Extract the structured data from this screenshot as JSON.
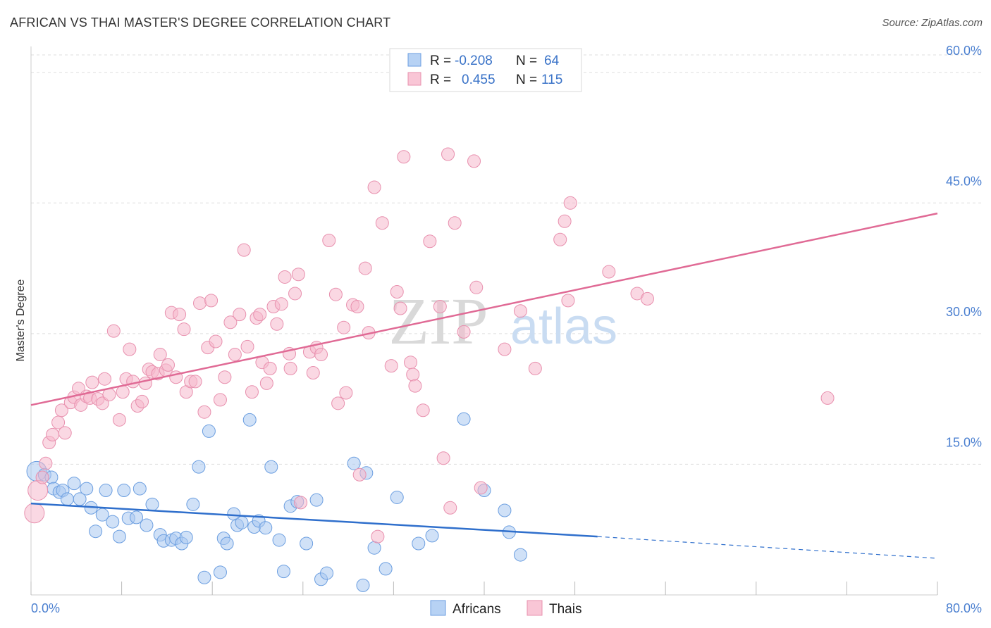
{
  "title": "AFRICAN VS THAI MASTER'S DEGREE CORRELATION CHART",
  "source": "Source: ZipAtlas.com",
  "watermark": {
    "zip": "ZIP",
    "atlas": "atlas"
  },
  "colors": {
    "africans_fill": "#a9c8f0",
    "africans_stroke": "#6b9ee0",
    "africans_line": "#2f6fcc",
    "thais_fill": "#f6b8cc",
    "thais_stroke": "#e890ae",
    "thais_line": "#e06a95",
    "axis_text": "#4a7fd0",
    "grid": "#dddddd"
  },
  "legend": {
    "row1": {
      "r_label": "R =",
      "r_value": "-0.208",
      "n_label": "N =",
      "n_value": "64"
    },
    "row2": {
      "r_label": "R =",
      "r_value": "0.455",
      "n_label": "N =",
      "n_value": "115"
    }
  },
  "chart_data": {
    "type": "scatter",
    "title": "AFRICAN VS THAI MASTER'S DEGREE CORRELATION CHART",
    "ylabel": "Master's Degree",
    "xlabel": "",
    "xlim": [
      0,
      80
    ],
    "ylim": [
      0,
      62
    ],
    "x_tick_labels": {
      "min": "0.0%",
      "max": "80.0%"
    },
    "y_ticks": [
      {
        "value": 15,
        "label": "15.0%"
      },
      {
        "value": 30,
        "label": "30.0%"
      },
      {
        "value": 45,
        "label": "45.0%"
      },
      {
        "value": 60,
        "label": "60.0%"
      }
    ],
    "series": [
      {
        "name": "Africans",
        "r": -0.208,
        "n": 64,
        "trend": {
          "x0": 0,
          "y0": 10.5,
          "x1": 50,
          "y1": 6.7,
          "dash_x1": 80,
          "dash_y1": 4.2
        },
        "points": [
          [
            0.5,
            14.2
          ],
          [
            1.2,
            13.8
          ],
          [
            1.8,
            13.5
          ],
          [
            2.0,
            12.2
          ],
          [
            2.5,
            11.8
          ],
          [
            2.8,
            12.0
          ],
          [
            3.2,
            11.0
          ],
          [
            3.8,
            12.8
          ],
          [
            4.3,
            11.0
          ],
          [
            4.9,
            12.2
          ],
          [
            5.3,
            10.0
          ],
          [
            5.7,
            7.3
          ],
          [
            6.3,
            9.2
          ],
          [
            6.6,
            12.0
          ],
          [
            7.2,
            8.4
          ],
          [
            7.8,
            6.7
          ],
          [
            8.2,
            12.0
          ],
          [
            8.6,
            8.8
          ],
          [
            9.3,
            8.9
          ],
          [
            9.6,
            12.2
          ],
          [
            10.2,
            8.0
          ],
          [
            10.7,
            10.4
          ],
          [
            11.4,
            6.9
          ],
          [
            11.7,
            6.2
          ],
          [
            12.4,
            6.3
          ],
          [
            12.8,
            6.5
          ],
          [
            13.3,
            5.9
          ],
          [
            13.7,
            6.6
          ],
          [
            14.3,
            10.4
          ],
          [
            14.8,
            14.7
          ],
          [
            15.3,
            2.0
          ],
          [
            15.7,
            18.8
          ],
          [
            16.7,
            2.6
          ],
          [
            17.0,
            6.5
          ],
          [
            17.3,
            5.9
          ],
          [
            17.9,
            9.3
          ],
          [
            18.2,
            8.0
          ],
          [
            18.6,
            8.3
          ],
          [
            19.3,
            20.1
          ],
          [
            19.7,
            7.8
          ],
          [
            20.1,
            8.5
          ],
          [
            20.7,
            7.7
          ],
          [
            21.2,
            14.7
          ],
          [
            21.9,
            6.3
          ],
          [
            22.3,
            2.7
          ],
          [
            22.9,
            10.2
          ],
          [
            23.5,
            10.7
          ],
          [
            24.3,
            5.9
          ],
          [
            25.2,
            10.9
          ],
          [
            25.6,
            1.8
          ],
          [
            26.1,
            2.5
          ],
          [
            28.5,
            15.1
          ],
          [
            29.3,
            1.1
          ],
          [
            29.6,
            14.0
          ],
          [
            30.3,
            5.4
          ],
          [
            31.3,
            3.0
          ],
          [
            32.3,
            11.2
          ],
          [
            34.2,
            5.9
          ],
          [
            35.4,
            6.8
          ],
          [
            38.2,
            20.2
          ],
          [
            40.0,
            12.0
          ],
          [
            41.8,
            9.7
          ],
          [
            42.2,
            7.2
          ],
          [
            43.2,
            4.6
          ]
        ]
      },
      {
        "name": "Thais",
        "r": 0.455,
        "n": 115,
        "trend": {
          "x0": 0,
          "y0": 21.8,
          "x1": 80,
          "y1": 43.8
        },
        "points": [
          [
            0.3,
            9.4
          ],
          [
            0.6,
            12.0
          ],
          [
            1.0,
            13.5
          ],
          [
            1.3,
            15.1
          ],
          [
            1.6,
            17.5
          ],
          [
            1.9,
            18.4
          ],
          [
            2.4,
            19.8
          ],
          [
            2.7,
            21.2
          ],
          [
            3.0,
            18.6
          ],
          [
            3.5,
            22.1
          ],
          [
            3.8,
            22.7
          ],
          [
            4.2,
            23.7
          ],
          [
            4.4,
            21.8
          ],
          [
            4.9,
            22.8
          ],
          [
            5.2,
            22.6
          ],
          [
            5.4,
            24.4
          ],
          [
            5.9,
            22.5
          ],
          [
            6.3,
            22.0
          ],
          [
            6.5,
            24.8
          ],
          [
            6.9,
            23.0
          ],
          [
            7.3,
            30.3
          ],
          [
            7.8,
            20.1
          ],
          [
            8.1,
            23.3
          ],
          [
            8.4,
            24.8
          ],
          [
            8.7,
            28.2
          ],
          [
            9.0,
            24.5
          ],
          [
            9.4,
            21.7
          ],
          [
            9.8,
            22.2
          ],
          [
            10.1,
            24.3
          ],
          [
            10.4,
            25.9
          ],
          [
            10.7,
            25.6
          ],
          [
            11.2,
            25.4
          ],
          [
            11.4,
            27.6
          ],
          [
            11.9,
            25.8
          ],
          [
            12.1,
            26.4
          ],
          [
            12.4,
            32.4
          ],
          [
            12.8,
            25.0
          ],
          [
            13.1,
            32.2
          ],
          [
            13.5,
            30.5
          ],
          [
            13.7,
            23.3
          ],
          [
            14.1,
            24.5
          ],
          [
            14.5,
            24.5
          ],
          [
            14.9,
            33.5
          ],
          [
            15.3,
            21.0
          ],
          [
            15.6,
            28.4
          ],
          [
            15.9,
            33.8
          ],
          [
            16.3,
            29.1
          ],
          [
            16.7,
            22.4
          ],
          [
            17.1,
            25.0
          ],
          [
            17.6,
            31.3
          ],
          [
            18.0,
            27.6
          ],
          [
            18.4,
            32.2
          ],
          [
            18.8,
            39.6
          ],
          [
            19.1,
            28.5
          ],
          [
            19.5,
            23.3
          ],
          [
            19.9,
            31.8
          ],
          [
            20.2,
            32.2
          ],
          [
            20.4,
            26.7
          ],
          [
            20.8,
            24.3
          ],
          [
            21.1,
            26.0
          ],
          [
            21.4,
            33.1
          ],
          [
            21.7,
            31.1
          ],
          [
            22.1,
            33.4
          ],
          [
            22.4,
            36.5
          ],
          [
            22.8,
            27.7
          ],
          [
            22.9,
            26.0
          ],
          [
            23.3,
            34.6
          ],
          [
            23.8,
            10.6
          ],
          [
            23.6,
            36.8
          ],
          [
            24.6,
            27.9
          ],
          [
            24.9,
            25.5
          ],
          [
            25.2,
            28.4
          ],
          [
            25.6,
            27.6
          ],
          [
            26.3,
            40.7
          ],
          [
            26.9,
            34.5
          ],
          [
            27.1,
            22.0
          ],
          [
            27.6,
            30.7
          ],
          [
            27.8,
            23.2
          ],
          [
            28.4,
            33.3
          ],
          [
            28.8,
            33.1
          ],
          [
            29.0,
            13.8
          ],
          [
            29.5,
            37.5
          ],
          [
            29.8,
            30.1
          ],
          [
            30.3,
            46.8
          ],
          [
            30.6,
            6.7
          ],
          [
            31.0,
            42.7
          ],
          [
            31.8,
            26.3
          ],
          [
            32.3,
            34.8
          ],
          [
            32.6,
            32.9
          ],
          [
            32.9,
            50.3
          ],
          [
            33.5,
            26.7
          ],
          [
            33.7,
            25.3
          ],
          [
            33.9,
            24.0
          ],
          [
            34.6,
            21.2
          ],
          [
            35.2,
            40.6
          ],
          [
            36.1,
            33.1
          ],
          [
            36.4,
            15.7
          ],
          [
            36.8,
            50.6
          ],
          [
            37.0,
            10.0
          ],
          [
            37.4,
            42.7
          ],
          [
            38.2,
            30.2
          ],
          [
            39.1,
            49.8
          ],
          [
            39.3,
            35.3
          ],
          [
            39.7,
            12.3
          ],
          [
            41.8,
            28.2
          ],
          [
            43.2,
            32.6
          ],
          [
            44.5,
            26.0
          ],
          [
            46.7,
            40.8
          ],
          [
            47.1,
            42.9
          ],
          [
            47.4,
            33.8
          ],
          [
            47.6,
            45.0
          ],
          [
            51.0,
            37.1
          ],
          [
            53.5,
            34.6
          ],
          [
            54.4,
            34.0
          ],
          [
            70.3,
            22.6
          ]
        ]
      }
    ]
  }
}
